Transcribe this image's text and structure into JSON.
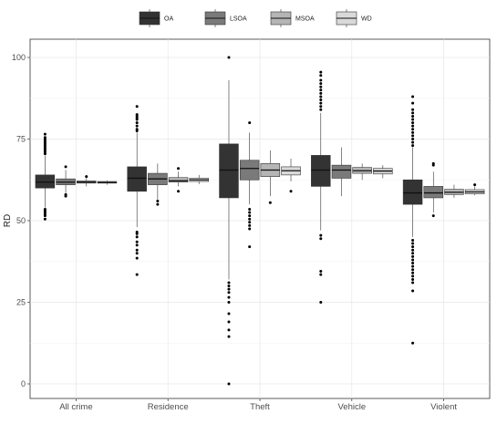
{
  "chart_data": {
    "type": "boxplot",
    "ylabel": "RD",
    "xlabel": "",
    "ylim": [
      0,
      100
    ],
    "yticks": [
      0,
      25,
      50,
      75,
      100
    ],
    "categories": [
      "All crime",
      "Residence",
      "Theft",
      "Vehicle",
      "Violent"
    ],
    "legend": {
      "position": "top",
      "entries": [
        "OA",
        "LSOA",
        "MSOA",
        "WD"
      ]
    },
    "colors": {
      "OA": "#333333",
      "LSOA": "#7a7a7a",
      "MSOA": "#b5b5b5",
      "WD": "#d9d9d9"
    },
    "grid": true,
    "series": [
      {
        "name": "OA",
        "boxes": [
          {
            "q1": 60,
            "median": 61.8,
            "q3": 64,
            "whisker_low": 54,
            "whisker_high": 70,
            "outliers": [
              50.5,
              51.5,
              52,
              52.5,
              53,
              53.5,
              70.5,
              71,
              71.5,
              72,
              72.5,
              73,
              73.5,
              74,
              74.5,
              75,
              75.5,
              76.5
            ]
          },
          {
            "q1": 59,
            "median": 63,
            "q3": 66.5,
            "whisker_low": 48,
            "whisker_high": 77,
            "outliers": [
              33.5,
              38.5,
              40,
              41,
              42.5,
              43.5,
              45,
              46,
              46.5,
              77.5,
              78,
              79,
              80,
              81,
              81.5,
              82,
              82.5,
              85
            ]
          },
          {
            "q1": 57,
            "median": 65.5,
            "q3": 73.5,
            "whisker_low": 32,
            "whisker_high": 93,
            "outliers": [
              0,
              14.5,
              16.5,
              19,
              21.5,
              25,
              26.5,
              28,
              29,
              30,
              31,
              100
            ]
          },
          {
            "q1": 60.5,
            "median": 65.5,
            "q3": 70,
            "whisker_low": 47,
            "whisker_high": 83,
            "outliers": [
              25,
              33.5,
              34.5,
              44.5,
              45.5,
              84,
              85,
              86,
              87,
              88,
              89,
              90,
              91,
              92,
              93,
              94.5,
              95.5
            ]
          },
          {
            "q1": 55,
            "median": 58.5,
            "q3": 62.5,
            "whisker_low": 45,
            "whisker_high": 72.5,
            "outliers": [
              12.5,
              28.5,
              31,
              32,
              33,
              34,
              35,
              36,
              37,
              38,
              39,
              40,
              41,
              42,
              43,
              44,
              73,
              74,
              75,
              76,
              77,
              78,
              79,
              80,
              81,
              82,
              83,
              84,
              86,
              88
            ]
          }
        ]
      },
      {
        "name": "LSOA",
        "boxes": [
          {
            "q1": 61,
            "median": 61.8,
            "q3": 62.8,
            "whisker_low": 58.5,
            "whisker_high": 65.5,
            "outliers": [
              57.5,
              58,
              66.5
            ]
          },
          {
            "q1": 61,
            "median": 62.8,
            "q3": 64.5,
            "whisker_low": 56.5,
            "whisker_high": 67.5,
            "outliers": [
              55,
              56
            ]
          },
          {
            "q1": 62.5,
            "median": 66,
            "q3": 68.5,
            "whisker_low": 55,
            "whisker_high": 77,
            "outliers": [
              42,
              47.5,
              48.5,
              49.5,
              50.5,
              51.5,
              52.5,
              53.5,
              80
            ]
          },
          {
            "q1": 63,
            "median": 65.5,
            "q3": 67,
            "whisker_low": 57.5,
            "whisker_high": 72.5,
            "outliers": []
          },
          {
            "q1": 57,
            "median": 58.5,
            "q3": 60.5,
            "whisker_low": 52.5,
            "whisker_high": 65,
            "outliers": [
              51.5,
              67,
              67.5
            ]
          }
        ]
      },
      {
        "name": "MSOA",
        "boxes": [
          {
            "q1": 61.5,
            "median": 61.8,
            "q3": 62.2,
            "whisker_low": 60.5,
            "whisker_high": 63,
            "outliers": [
              63.5
            ]
          },
          {
            "q1": 61.8,
            "median": 62.2,
            "q3": 63.2,
            "whisker_low": 60.5,
            "whisker_high": 65,
            "outliers": [
              59,
              66
            ]
          },
          {
            "q1": 63.5,
            "median": 65.5,
            "q3": 67.5,
            "whisker_low": 57.5,
            "whisker_high": 71.5,
            "outliers": [
              55.5
            ]
          },
          {
            "q1": 64.5,
            "median": 65.3,
            "q3": 66.3,
            "whisker_low": 62.5,
            "whisker_high": 67.5,
            "outliers": []
          },
          {
            "q1": 58,
            "median": 58.7,
            "q3": 59.6,
            "whisker_low": 57,
            "whisker_high": 61,
            "outliers": []
          }
        ]
      },
      {
        "name": "WD",
        "boxes": [
          {
            "q1": 61.5,
            "median": 61.7,
            "q3": 62,
            "whisker_low": 61,
            "whisker_high": 62.3,
            "outliers": []
          },
          {
            "q1": 62,
            "median": 62.5,
            "q3": 63,
            "whisker_low": 61.2,
            "whisker_high": 64,
            "outliers": []
          },
          {
            "q1": 64,
            "median": 65.3,
            "q3": 66.5,
            "whisker_low": 62,
            "whisker_high": 69,
            "outliers": [
              59
            ]
          },
          {
            "q1": 64.3,
            "median": 65.2,
            "q3": 66,
            "whisker_low": 63,
            "whisker_high": 67,
            "outliers": []
          },
          {
            "q1": 58.2,
            "median": 58.8,
            "q3": 59.5,
            "whisker_low": 57.8,
            "whisker_high": 60.5,
            "outliers": [
              61
            ]
          }
        ]
      }
    ]
  }
}
